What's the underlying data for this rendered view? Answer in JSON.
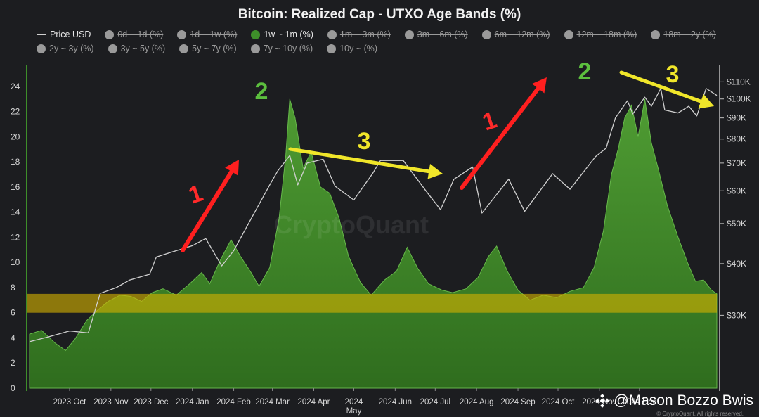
{
  "chart_data": {
    "type": "area",
    "title": "Bitcoin: Realized Cap - UTXO Age Bands (%)",
    "legend": [
      {
        "label": "Price USD",
        "kind": "line",
        "active": true
      },
      {
        "label": "0d ~ 1d (%)",
        "kind": "dot",
        "active": false
      },
      {
        "label": "1d ~ 1w (%)",
        "kind": "dot",
        "active": false
      },
      {
        "label": "1w ~ 1m (%)",
        "kind": "dot",
        "active": true
      },
      {
        "label": "1m ~ 3m (%)",
        "kind": "dot",
        "active": false
      },
      {
        "label": "3m ~ 6m (%)",
        "kind": "dot",
        "active": false
      },
      {
        "label": "6m ~ 12m (%)",
        "kind": "dot",
        "active": false
      },
      {
        "label": "12m ~ 18m (%)",
        "kind": "dot",
        "active": false
      },
      {
        "label": "18m ~ 2y (%)",
        "kind": "dot",
        "active": false
      },
      {
        "label": "2y ~ 3y (%)",
        "kind": "dot",
        "active": false
      },
      {
        "label": "3y ~ 5y (%)",
        "kind": "dot",
        "active": false
      },
      {
        "label": "5y ~ 7y (%)",
        "kind": "dot",
        "active": false
      },
      {
        "label": "7y ~ 10y (%)",
        "kind": "dot",
        "active": false
      },
      {
        "label": "10y ~ (%)",
        "kind": "dot",
        "active": false
      }
    ],
    "x_tick_labels": [
      "2023 Oct",
      "2023 Nov",
      "2023 Dec",
      "2024 Jan",
      "2024 Feb",
      "2024 Mar",
      "2024 Apr",
      "2024 May",
      "2024 Jun",
      "2024 Jul",
      "2024 Aug",
      "2024 Sep",
      "2024 Oct",
      "2024 Nov",
      "2024 Dec"
    ],
    "x_range": [
      "2023-09-01",
      "2025-01-28"
    ],
    "y_left": {
      "min": 0,
      "max": 25,
      "ticks": [
        0,
        2,
        4,
        6,
        8,
        10,
        12,
        14,
        16,
        18,
        20,
        22,
        24
      ]
    },
    "y_right": {
      "scale": "log",
      "min": 20000,
      "max": 115000,
      "ticks": [
        30000,
        40000,
        50000,
        60000,
        70000,
        80000,
        90000,
        100000,
        110000
      ],
      "tick_labels": [
        "$30K",
        "$40K",
        "$50K",
        "$60K",
        "$70K",
        "$80K",
        "$90K",
        "$100K",
        "$110K"
      ]
    },
    "series": [
      {
        "name": "1w ~ 1m (%)",
        "axis": "left",
        "color": "#3e8e2a",
        "points": [
          [
            "2023-09-01",
            4.3
          ],
          [
            "2023-09-10",
            4.6
          ],
          [
            "2023-09-20",
            3.6
          ],
          [
            "2023-09-28",
            3.0
          ],
          [
            "2023-10-05",
            3.9
          ],
          [
            "2023-10-14",
            5.4
          ],
          [
            "2023-10-22",
            6.2
          ],
          [
            "2023-10-30",
            6.9
          ],
          [
            "2023-11-08",
            7.4
          ],
          [
            "2023-11-16",
            7.3
          ],
          [
            "2023-11-24",
            6.9
          ],
          [
            "2023-12-02",
            7.6
          ],
          [
            "2023-12-10",
            7.9
          ],
          [
            "2023-12-20",
            7.4
          ],
          [
            "2023-12-30",
            8.3
          ],
          [
            "2024-01-08",
            9.2
          ],
          [
            "2024-01-14",
            8.3
          ],
          [
            "2024-01-22",
            10.2
          ],
          [
            "2024-01-30",
            11.8
          ],
          [
            "2024-02-06",
            10.5
          ],
          [
            "2024-02-14",
            9.2
          ],
          [
            "2024-02-20",
            8.1
          ],
          [
            "2024-02-28",
            9.6
          ],
          [
            "2024-03-06",
            13.5
          ],
          [
            "2024-03-11",
            18.5
          ],
          [
            "2024-03-14",
            23.0
          ],
          [
            "2024-03-18",
            21.5
          ],
          [
            "2024-03-24",
            17.5
          ],
          [
            "2024-03-30",
            18.8
          ],
          [
            "2024-04-06",
            16.0
          ],
          [
            "2024-04-13",
            15.5
          ],
          [
            "2024-04-20",
            13.5
          ],
          [
            "2024-04-27",
            10.5
          ],
          [
            "2024-05-06",
            8.4
          ],
          [
            "2024-05-14",
            7.4
          ],
          [
            "2024-05-24",
            8.6
          ],
          [
            "2024-06-02",
            9.3
          ],
          [
            "2024-06-10",
            11.2
          ],
          [
            "2024-06-18",
            9.5
          ],
          [
            "2024-06-26",
            8.3
          ],
          [
            "2024-07-06",
            7.8
          ],
          [
            "2024-07-14",
            7.6
          ],
          [
            "2024-07-24",
            7.9
          ],
          [
            "2024-08-02",
            8.8
          ],
          [
            "2024-08-10",
            10.5
          ],
          [
            "2024-08-16",
            11.3
          ],
          [
            "2024-08-24",
            9.3
          ],
          [
            "2024-09-01",
            7.8
          ],
          [
            "2024-09-10",
            7.0
          ],
          [
            "2024-09-20",
            7.4
          ],
          [
            "2024-09-30",
            7.2
          ],
          [
            "2024-10-10",
            7.7
          ],
          [
            "2024-10-20",
            8.0
          ],
          [
            "2024-10-28",
            9.6
          ],
          [
            "2024-11-04",
            12.5
          ],
          [
            "2024-11-10",
            17.0
          ],
          [
            "2024-11-15",
            19.0
          ],
          [
            "2024-11-20",
            21.5
          ],
          [
            "2024-11-25",
            22.5
          ],
          [
            "2024-11-30",
            20.0
          ],
          [
            "2024-12-05",
            23.0
          ],
          [
            "2024-12-10",
            19.5
          ],
          [
            "2024-12-15",
            17.5
          ],
          [
            "2024-12-22",
            14.5
          ],
          [
            "2024-12-30",
            12.0
          ],
          [
            "2025-01-06",
            10.0
          ],
          [
            "2025-01-12",
            8.5
          ],
          [
            "2025-01-18",
            8.6
          ],
          [
            "2025-01-24",
            7.8
          ],
          [
            "2025-01-28",
            7.5
          ]
        ]
      },
      {
        "name": "Price USD",
        "axis": "right",
        "color": "#d0d0d0",
        "points": [
          [
            "2023-09-01",
            25900
          ],
          [
            "2023-09-15",
            26600
          ],
          [
            "2023-10-01",
            27500
          ],
          [
            "2023-10-15",
            27200
          ],
          [
            "2023-10-24",
            33900
          ],
          [
            "2023-11-05",
            35000
          ],
          [
            "2023-11-15",
            36500
          ],
          [
            "2023-11-30",
            37700
          ],
          [
            "2023-12-05",
            41500
          ],
          [
            "2023-12-15",
            42500
          ],
          [
            "2024-01-01",
            44200
          ],
          [
            "2024-01-11",
            46000
          ],
          [
            "2024-01-23",
            39500
          ],
          [
            "2024-02-01",
            43000
          ],
          [
            "2024-02-15",
            52000
          ],
          [
            "2024-02-28",
            62000
          ],
          [
            "2024-03-05",
            67000
          ],
          [
            "2024-03-14",
            73000
          ],
          [
            "2024-03-20",
            62000
          ],
          [
            "2024-03-27",
            70000
          ],
          [
            "2024-04-08",
            71500
          ],
          [
            "2024-04-17",
            61500
          ],
          [
            "2024-05-01",
            57000
          ],
          [
            "2024-05-15",
            66000
          ],
          [
            "2024-05-21",
            71000
          ],
          [
            "2024-06-07",
            71000
          ],
          [
            "2024-06-24",
            60000
          ],
          [
            "2024-07-05",
            54000
          ],
          [
            "2024-07-15",
            64000
          ],
          [
            "2024-07-29",
            68500
          ],
          [
            "2024-08-05",
            53000
          ],
          [
            "2024-08-25",
            64000
          ],
          [
            "2024-09-06",
            53500
          ],
          [
            "2024-09-27",
            66000
          ],
          [
            "2024-10-10",
            60500
          ],
          [
            "2024-10-29",
            72500
          ],
          [
            "2024-11-06",
            76000
          ],
          [
            "2024-11-13",
            90000
          ],
          [
            "2024-11-22",
            99000
          ],
          [
            "2024-11-26",
            92000
          ],
          [
            "2024-12-05",
            101000
          ],
          [
            "2024-12-10",
            96000
          ],
          [
            "2024-12-17",
            106000
          ],
          [
            "2024-12-20",
            94000
          ],
          [
            "2024-12-30",
            92500
          ],
          [
            "2025-01-07",
            96000
          ],
          [
            "2025-01-13",
            91000
          ],
          [
            "2025-01-20",
            106000
          ],
          [
            "2025-01-28",
            102000
          ]
        ]
      }
    ],
    "highlight_band": {
      "axis": "left",
      "from": 6,
      "to": 7.5,
      "color": "#d4b000"
    },
    "annotations": [
      {
        "text": "1",
        "color": "#ff2a2a"
      },
      {
        "text": "2",
        "color": "#5cbf3e"
      },
      {
        "text": "3",
        "color": "#f0e62a"
      },
      {
        "text": "1",
        "color": "#ff2a2a"
      },
      {
        "text": "2",
        "color": "#5cbf3e"
      },
      {
        "text": "3",
        "color": "#f0e62a"
      }
    ],
    "watermark": "CryptoQuant",
    "credit": "© CryptoQuant. All rights reserved."
  },
  "overlay": {
    "author": "@Mason Bozzo Bwis"
  }
}
